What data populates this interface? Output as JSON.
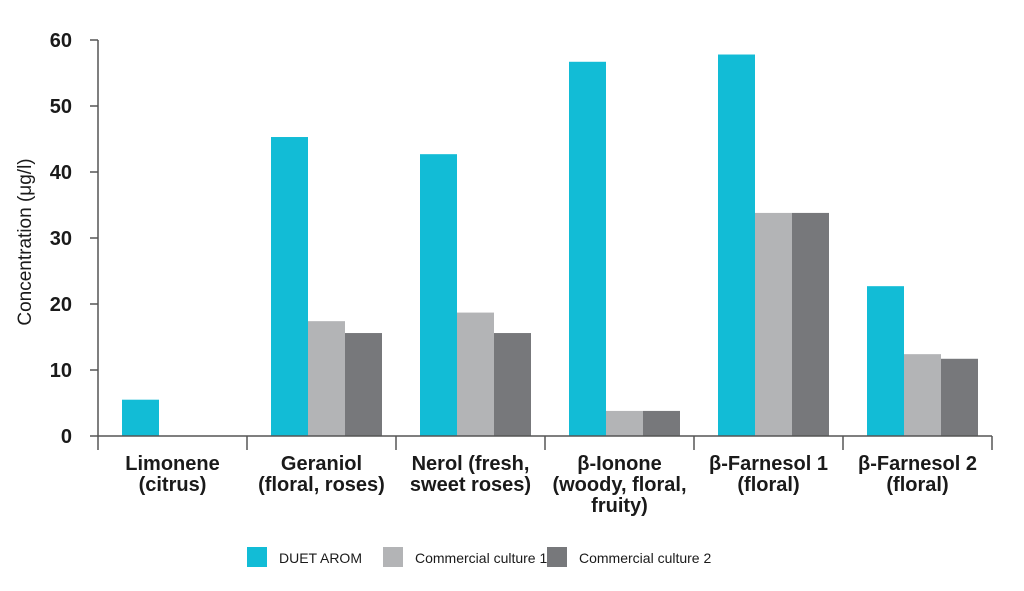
{
  "chart_data": {
    "type": "bar",
    "title": "",
    "xlabel": "",
    "ylabel": "Concentration (μg/l)",
    "ylim": [
      0,
      60
    ],
    "yticks": [
      0,
      10,
      20,
      30,
      40,
      50,
      60
    ],
    "grid": false,
    "legend_position": "bottom-center",
    "categories": [
      [
        "Limonene",
        "(citrus)"
      ],
      [
        "Geraniol",
        "(floral, roses)"
      ],
      [
        "Nerol (fresh,",
        "sweet roses)"
      ],
      [
        "β-Ionone",
        "(woody, floral,",
        "fruity)"
      ],
      [
        "β-Farnesol 1",
        "(floral)"
      ],
      [
        "β-Farnesol 2",
        "(floral)"
      ]
    ],
    "series": [
      {
        "name": "DUET AROM",
        "color": "#12bcd6",
        "values": [
          5.5,
          45.3,
          42.7,
          56.7,
          57.8,
          22.7
        ]
      },
      {
        "name": "Commercial culture 1",
        "color": "#b3b4b6",
        "values": [
          0,
          17.4,
          18.7,
          3.8,
          33.8,
          12.4
        ]
      },
      {
        "name": "Commercial culture 2",
        "color": "#77787b",
        "values": [
          0,
          15.6,
          15.6,
          3.8,
          33.8,
          11.7
        ]
      }
    ]
  }
}
